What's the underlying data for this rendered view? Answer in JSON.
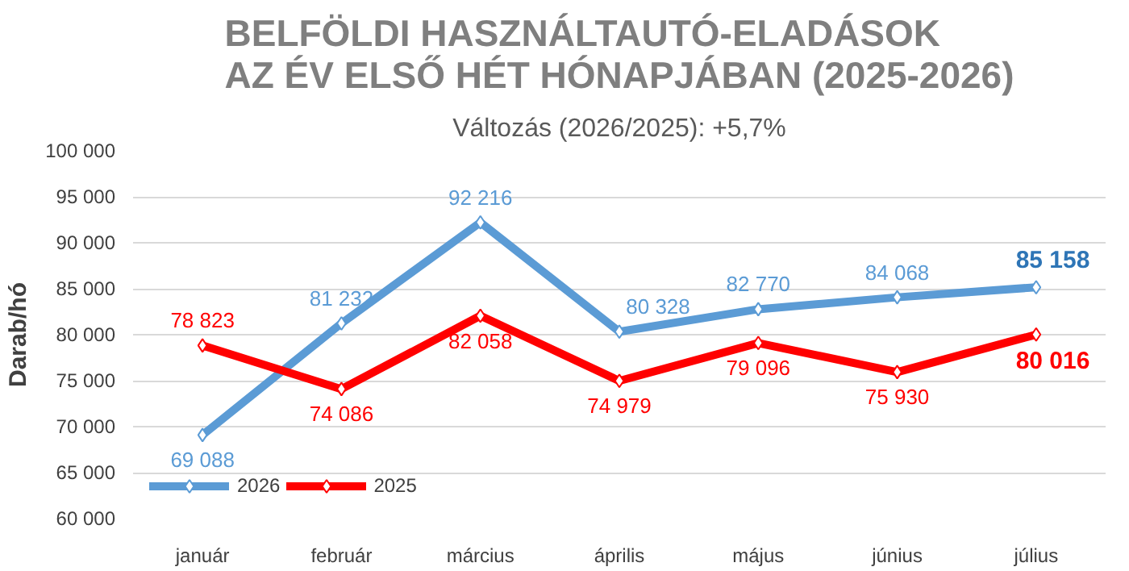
{
  "chart_data": {
    "type": "line",
    "title": "BELFÖLDI HASZNÁLTAUTÓ-ELADÁSOK\nAZ ÉV ELSŐ HÉT HÓNAPJÁBAN (2025-2026)",
    "subtitle": "Változás (2026/2025): +5,7%",
    "ylabel": "Darab/hó",
    "categories": [
      "január",
      "február",
      "március",
      "április",
      "május",
      "június",
      "július"
    ],
    "series": [
      {
        "name": "2026",
        "color": "#5b9bd5",
        "values": [
          69088,
          81232,
          92216,
          80328,
          82770,
          84068,
          85158
        ]
      },
      {
        "name": "2025",
        "color": "#ff0000",
        "values": [
          78823,
          74086,
          82058,
          74979,
          79096,
          75930,
          80016
        ]
      }
    ],
    "ylim": [
      60000,
      100000
    ],
    "yticks": [
      {
        "value": 60000,
        "label": "60 000"
      },
      {
        "value": 65000,
        "label": "65 000"
      },
      {
        "value": 70000,
        "label": "70 000"
      },
      {
        "value": 75000,
        "label": "75 000"
      },
      {
        "value": 80000,
        "label": "80 000"
      },
      {
        "value": 85000,
        "label": "85 000"
      },
      {
        "value": 90000,
        "label": "90 000"
      },
      {
        "value": 95000,
        "label": "95 000"
      },
      {
        "value": 100000,
        "label": "100 000"
      }
    ],
    "grid": "y",
    "legend": "bottom left",
    "marker": "diamond",
    "line_style": "solid",
    "data_labels": true
  }
}
